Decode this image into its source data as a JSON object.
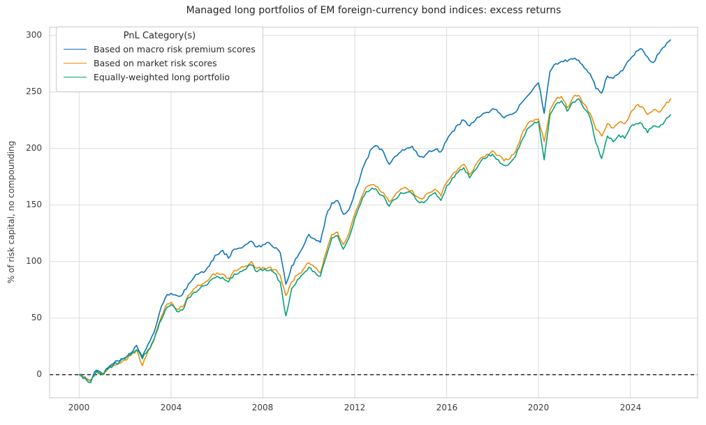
{
  "chart_data": {
    "type": "line",
    "title": "Managed long portfolios of EM foreign-currency bond indices: excess returns",
    "xlabel": "",
    "ylabel": "% of risk capital, no compounding",
    "xlim": [
      1998.71,
      2026.93
    ],
    "ylim": [
      -20.4,
      307.2
    ],
    "grid": true,
    "x_ticks": [
      2000,
      2004,
      2008,
      2012,
      2016,
      2020,
      2024
    ],
    "x_tick_labels": [
      "2000",
      "2004",
      "2008",
      "2012",
      "2016",
      "2020",
      "2024"
    ],
    "y_ticks": [
      0,
      50,
      100,
      150,
      200,
      250,
      300
    ],
    "y_tick_labels": [
      "0",
      "50",
      "100",
      "150",
      "200",
      "250",
      "300"
    ],
    "zero_line": {
      "value": 0,
      "style": "dashed",
      "color": "#000000"
    },
    "legend": {
      "title": "PnL Category(s)",
      "position": "upper-left"
    },
    "x": [
      2000,
      2000.25,
      2000.5,
      2000.75,
      2001,
      2001.25,
      2001.5,
      2001.75,
      2002,
      2002.25,
      2002.5,
      2002.75,
      2003,
      2003.25,
      2003.5,
      2003.75,
      2004,
      2004.25,
      2004.5,
      2004.75,
      2005,
      2005.25,
      2005.5,
      2005.75,
      2006,
      2006.25,
      2006.5,
      2006.75,
      2007,
      2007.25,
      2007.5,
      2007.75,
      2008,
      2008.25,
      2008.5,
      2008.75,
      2009,
      2009.25,
      2009.5,
      2009.75,
      2010,
      2010.25,
      2010.5,
      2010.75,
      2011,
      2011.25,
      2011.5,
      2011.75,
      2012,
      2012.25,
      2012.5,
      2012.75,
      2013,
      2013.25,
      2013.5,
      2013.75,
      2014,
      2014.25,
      2014.5,
      2014.75,
      2015,
      2015.25,
      2015.5,
      2015.75,
      2016,
      2016.25,
      2016.5,
      2016.75,
      2017,
      2017.25,
      2017.5,
      2017.75,
      2018,
      2018.25,
      2018.5,
      2018.75,
      2019,
      2019.25,
      2019.5,
      2019.75,
      2020,
      2020.25,
      2020.5,
      2020.75,
      2021,
      2021.25,
      2021.5,
      2021.75,
      2022,
      2022.25,
      2022.5,
      2022.75,
      2023,
      2023.25,
      2023.5,
      2023.75,
      2024,
      2024.25,
      2024.5,
      2024.75,
      2025,
      2025.25,
      2025.5,
      2025.75
    ],
    "series": [
      {
        "name": "Based on macro risk premium scores",
        "color": "#0b74b8",
        "values": [
          0,
          -2,
          -5,
          4,
          1,
          6,
          10,
          12,
          15,
          19,
          26,
          16,
          27,
          37,
          55,
          68,
          72,
          70,
          71,
          80,
          86,
          90,
          92,
          100,
          106,
          110,
          103,
          111,
          112,
          115,
          118,
          113,
          115,
          117,
          112,
          108,
          80,
          96,
          104,
          113,
          124,
          120,
          117,
          140,
          152,
          154,
          142,
          146,
          161,
          176,
          190,
          200,
          202,
          197,
          186,
          193,
          197,
          200,
          202,
          194,
          192,
          198,
          199,
          197,
          207,
          215,
          221,
          225,
          220,
          225,
          229,
          232,
          235,
          232,
          227,
          230,
          232,
          240,
          246,
          252,
          258,
          231,
          268,
          275,
          277,
          277,
          279,
          278,
          271,
          266,
          253,
          249,
          264,
          262,
          266,
          272,
          279,
          286,
          288,
          281,
          276,
          284,
          290,
          296
        ]
      },
      {
        "name": "Based on market risk scores",
        "color": "#e8900e",
        "values": [
          0,
          -3,
          -6,
          3,
          0,
          5,
          8,
          10,
          13,
          17,
          22,
          8,
          21,
          30,
          47,
          60,
          64,
          58,
          60,
          70,
          76,
          79,
          82,
          87,
          90,
          89,
          85,
          92,
          94,
          96,
          100,
          94,
          95,
          95,
          93,
          88,
          70,
          82,
          88,
          93,
          99,
          95,
          90,
          108,
          124,
          126,
          115,
          125,
          142,
          155,
          166,
          168,
          166,
          161,
          153,
          159,
          164,
          165,
          163,
          157,
          156,
          161,
          164,
          158,
          170,
          177,
          182,
          186,
          177,
          185,
          192,
          195,
          198,
          194,
          189,
          191,
          197,
          211,
          221,
          224,
          226,
          206,
          234,
          243,
          246,
          236,
          245,
          247,
          239,
          231,
          217,
          211,
          222,
          218,
          223,
          222,
          231,
          238,
          237,
          230,
          234,
          232,
          238,
          244
        ]
      },
      {
        "name": "Equally-weighted long portfolio",
        "color": "#04a07c",
        "values": [
          0,
          -3,
          -7,
          3,
          0,
          5,
          9,
          11,
          14,
          18,
          22,
          14,
          22,
          31,
          46,
          57,
          62,
          56,
          57,
          68,
          73,
          76,
          79,
          84,
          87,
          86,
          82,
          89,
          91,
          93,
          97,
          91,
          92,
          92,
          90,
          82,
          52,
          76,
          84,
          89,
          95,
          91,
          87,
          104,
          121,
          123,
          111,
          121,
          138,
          151,
          162,
          165,
          162,
          158,
          149,
          155,
          161,
          161,
          160,
          153,
          152,
          158,
          161,
          154,
          167,
          174,
          179,
          183,
          174,
          181,
          189,
          192,
          195,
          190,
          185,
          187,
          193,
          206,
          217,
          221,
          224,
          190,
          230,
          239,
          242,
          233,
          241,
          244,
          235,
          227,
          205,
          191,
          211,
          206,
          212,
          209,
          219,
          222,
          222,
          214,
          220,
          219,
          224,
          230
        ]
      }
    ]
  }
}
